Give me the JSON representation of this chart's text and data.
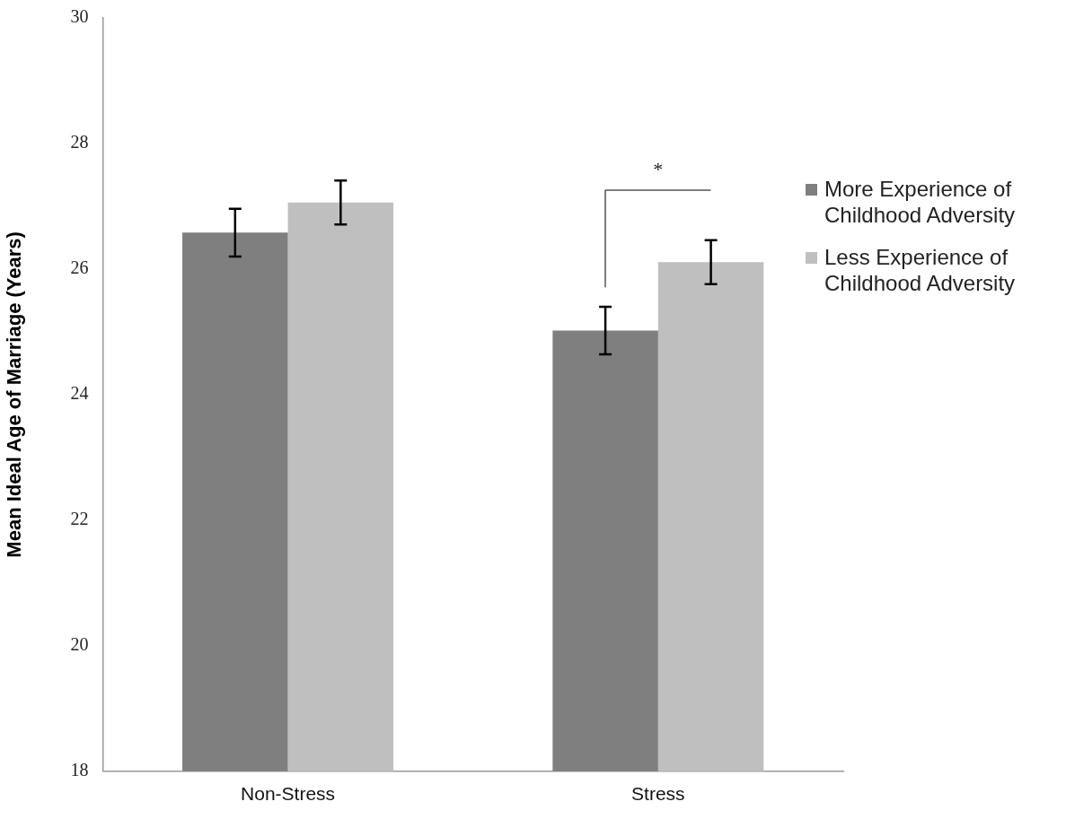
{
  "chart_data": {
    "type": "bar",
    "ylabel": "Mean Ideal Age of Marriage (Years)",
    "categories": [
      "Non-Stress",
      "Stress"
    ],
    "series": [
      {
        "name": "More Experience of Childhood Adversity",
        "color": "#7f7f7f",
        "values": [
          26.58,
          25.02
        ],
        "errors": [
          0.38,
          0.38
        ]
      },
      {
        "name": "Less Experience of Childhood Adversity",
        "color": "#bfbfbf",
        "values": [
          27.06,
          26.11
        ],
        "errors": [
          0.35,
          0.35
        ]
      }
    ],
    "ylim": [
      18,
      30
    ],
    "yticks": [
      18,
      20,
      22,
      24,
      26,
      28,
      30
    ],
    "grid": false,
    "legend": "right",
    "annotations": [
      "*"
    ]
  }
}
